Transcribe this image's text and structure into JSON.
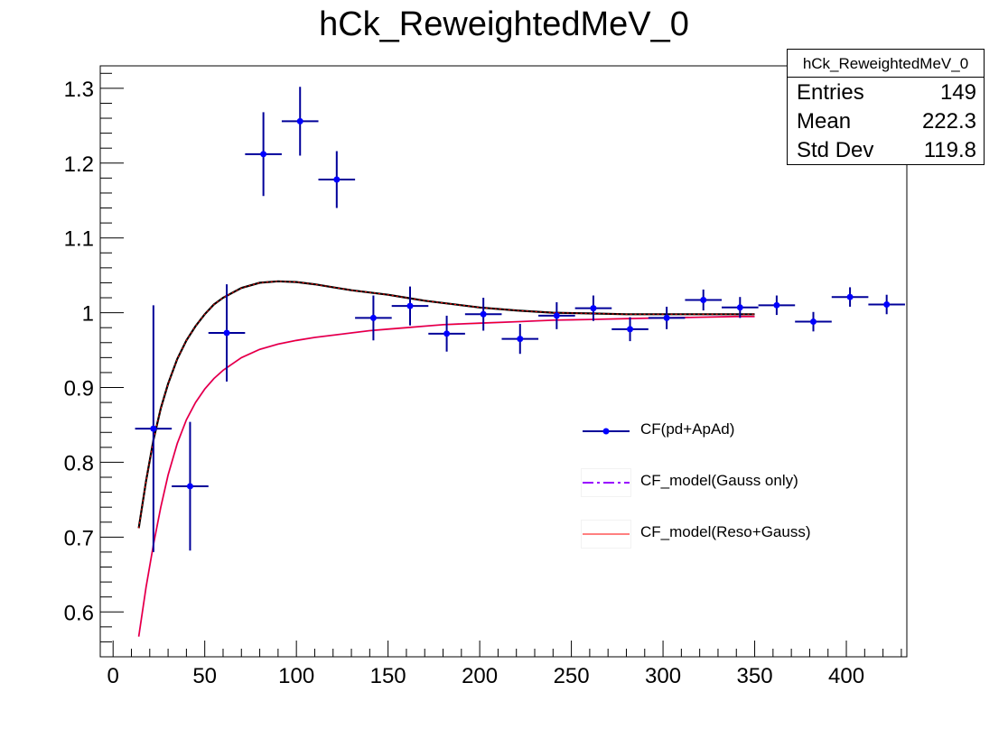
{
  "title": "hCk_ReweightedMeV_0",
  "stats": {
    "title": "hCk_ReweightedMeV_0",
    "rows": [
      {
        "label": "Entries",
        "value": "149"
      },
      {
        "label": "Mean",
        "value": "222.3"
      },
      {
        "label": "Std Dev",
        "value": "119.8"
      }
    ]
  },
  "legend": {
    "data": "CF(pd+ApAd)",
    "gauss": "CF_model(Gauss only)",
    "reso": "CF_model(Reso+Gauss)"
  },
  "colors": {
    "data": "#0000ff",
    "error": "#000099",
    "gauss": "#9900ff",
    "reso": "#ff0000",
    "upper_curve": "#000000",
    "lower_curve": "#cc0099"
  },
  "chart_data": {
    "type": "scatter",
    "title": "hCk_ReweightedMeV_0",
    "xlabel": "",
    "ylabel": "",
    "xlim": [
      -7,
      433
    ],
    "ylim": [
      0.54,
      1.33
    ],
    "x_ticks": [
      "0",
      "50",
      "100",
      "150",
      "200",
      "250",
      "300",
      "350",
      "400"
    ],
    "y_ticks": [
      "0.6",
      "0.7",
      "0.8",
      "0.9",
      "1",
      "1.1",
      "1.2",
      "1.3"
    ],
    "bin_half_width": 10,
    "series": [
      {
        "name": "CF(pd+ApAd)",
        "points": [
          {
            "x": 22,
            "y": 0.845,
            "err": 0.165
          },
          {
            "x": 42,
            "y": 0.768,
            "err": 0.086
          },
          {
            "x": 62,
            "y": 0.973,
            "err": 0.065
          },
          {
            "x": 82,
            "y": 1.212,
            "err": 0.056
          },
          {
            "x": 102,
            "y": 1.256,
            "err": 0.046
          },
          {
            "x": 122,
            "y": 1.178,
            "err": 0.038
          },
          {
            "x": 142,
            "y": 0.993,
            "err": 0.03
          },
          {
            "x": 162,
            "y": 1.009,
            "err": 0.026
          },
          {
            "x": 182,
            "y": 0.972,
            "err": 0.024
          },
          {
            "x": 202,
            "y": 0.998,
            "err": 0.022
          },
          {
            "x": 222,
            "y": 0.965,
            "err": 0.02
          },
          {
            "x": 242,
            "y": 0.996,
            "err": 0.018
          },
          {
            "x": 262,
            "y": 1.006,
            "err": 0.017
          },
          {
            "x": 282,
            "y": 0.978,
            "err": 0.016
          },
          {
            "x": 302,
            "y": 0.993,
            "err": 0.015
          },
          {
            "x": 322,
            "y": 1.017,
            "err": 0.014
          },
          {
            "x": 342,
            "y": 1.007,
            "err": 0.014
          },
          {
            "x": 362,
            "y": 1.01,
            "err": 0.013
          },
          {
            "x": 382,
            "y": 0.988,
            "err": 0.013
          },
          {
            "x": 402,
            "y": 1.021,
            "err": 0.013
          },
          {
            "x": 422,
            "y": 1.011,
            "err": 0.013
          }
        ]
      },
      {
        "name": "CF_model(Gauss only)",
        "x": [
          14,
          18,
          22,
          26,
          30,
          35,
          40,
          45,
          50,
          55,
          60,
          70,
          80,
          90,
          100,
          110,
          120,
          130,
          140,
          150,
          160,
          170,
          180,
          190,
          200,
          220,
          240,
          260,
          280,
          300,
          320,
          340,
          350
        ],
        "y": [
          0.712,
          0.775,
          0.83,
          0.872,
          0.905,
          0.938,
          0.963,
          0.982,
          0.998,
          1.011,
          1.02,
          1.033,
          1.04,
          1.042,
          1.041,
          1.038,
          1.034,
          1.03,
          1.027,
          1.024,
          1.02,
          1.016,
          1.013,
          1.01,
          1.007,
          1.003,
          1.0,
          0.999,
          0.998,
          0.998,
          0.998,
          0.998,
          0.998
        ]
      },
      {
        "name": "CF_model(Reso+Gauss)",
        "x": [
          14,
          18,
          22,
          26,
          30,
          35,
          40,
          45,
          50,
          55,
          60,
          70,
          80,
          90,
          100,
          110,
          120,
          130,
          140,
          150,
          160,
          170,
          180,
          190,
          200,
          220,
          240,
          260,
          280,
          300,
          320,
          340,
          350
        ],
        "y": [
          0.567,
          0.633,
          0.69,
          0.74,
          0.783,
          0.825,
          0.857,
          0.88,
          0.898,
          0.912,
          0.923,
          0.94,
          0.951,
          0.958,
          0.963,
          0.967,
          0.97,
          0.973,
          0.976,
          0.978,
          0.98,
          0.982,
          0.984,
          0.985,
          0.986,
          0.988,
          0.99,
          0.991,
          0.992,
          0.993,
          0.994,
          0.995,
          0.995
        ]
      }
    ]
  }
}
